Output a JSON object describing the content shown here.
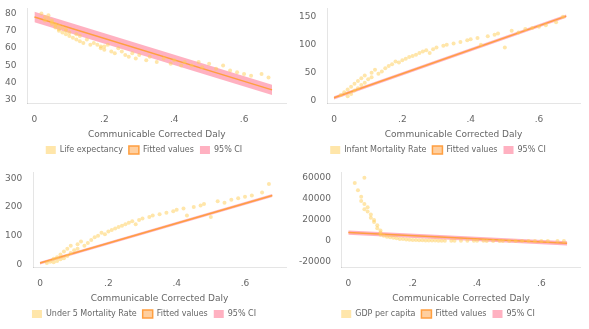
{
  "chart_data": [
    {
      "type": "scatter",
      "xlabel": "Communicable Corrected Daly",
      "xlim": [
        -0.02,
        0.72
      ],
      "xticks": [
        0,
        {
          "value": 0.2,
          "label": ".2"
        },
        {
          "value": 0.4,
          "label": ".4"
        },
        {
          "value": 0.6,
          "label": ".6"
        }
      ],
      "ylim": [
        28,
        83
      ],
      "yticks": [
        30,
        40,
        50,
        60,
        70,
        80
      ],
      "grid": false,
      "legend": "bottom",
      "series": [
        {
          "name": "95% CI",
          "type": "area",
          "x": [
            0,
            0.68
          ],
          "lower": [
            75,
            32.84
          ],
          "upper": [
            81,
            38.84
          ]
        },
        {
          "name": "Fitted values",
          "type": "line",
          "x": [
            0,
            0.68
          ],
          "values": [
            78,
            35.84
          ]
        },
        {
          "name": "Life expectancy",
          "type": "scatter",
          "x": [
            0.02,
            0.03,
            0.03,
            0.04,
            0.04,
            0.05,
            0.05,
            0.05,
            0.06,
            0.06,
            0.06,
            0.07,
            0.07,
            0.07,
            0.08,
            0.08,
            0.09,
            0.09,
            0.09,
            0.1,
            0.1,
            0.11,
            0.12,
            0.12,
            0.13,
            0.13,
            0.14,
            0.15,
            0.16,
            0.17,
            0.18,
            0.19,
            0.19,
            0.2,
            0.2,
            0.21,
            0.22,
            0.23,
            0.24,
            0.25,
            0.26,
            0.27,
            0.28,
            0.29,
            0.3,
            0.32,
            0.33,
            0.35,
            0.37,
            0.39,
            0.4,
            0.42,
            0.43,
            0.45,
            0.47,
            0.48,
            0.5,
            0.52,
            0.54,
            0.56,
            0.58,
            0.6,
            0.62,
            0.65,
            0.67
          ],
          "values": [
            80,
            78,
            76,
            79,
            77,
            75,
            76,
            74,
            73,
            72,
            74,
            71,
            73,
            70,
            72,
            69,
            71,
            68,
            70,
            67,
            69,
            66,
            65,
            68,
            64,
            67,
            63,
            65,
            62,
            63,
            62,
            61,
            60,
            61,
            59,
            62,
            58,
            57,
            60,
            58,
            56,
            55,
            57,
            54,
            56,
            53,
            55,
            52,
            54,
            51,
            53,
            50,
            52,
            50,
            52,
            49,
            51,
            48,
            50,
            47,
            46,
            45,
            44,
            45,
            43
          ]
        }
      ]
    },
    {
      "type": "scatter",
      "xlabel": "Communicable Corrected Daly",
      "xlim": [
        -0.02,
        0.72
      ],
      "xticks": [
        0,
        {
          "value": 0.2,
          "label": ".2"
        },
        {
          "value": 0.4,
          "label": ".4"
        },
        {
          "value": 0.6,
          "label": ".6"
        }
      ],
      "ylim": [
        -5,
        165
      ],
      "yticks": [
        0,
        50,
        100,
        150
      ],
      "grid": false,
      "legend": "bottom",
      "series": [
        {
          "name": "95% CI",
          "type": "area",
          "x": [
            0,
            0.68
          ],
          "lower": [
            2,
            148.2
          ],
          "upper": [
            8,
            154.2
          ]
        },
        {
          "name": "Fitted values",
          "type": "line",
          "x": [
            0,
            0.68
          ],
          "values": [
            5,
            151.2
          ]
        },
        {
          "name": "Infant Mortality Rate",
          "type": "scatter",
          "x": [
            0.02,
            0.03,
            0.04,
            0.04,
            0.05,
            0.05,
            0.06,
            0.06,
            0.07,
            0.07,
            0.08,
            0.08,
            0.09,
            0.09,
            0.1,
            0.11,
            0.11,
            0.12,
            0.13,
            0.14,
            0.15,
            0.16,
            0.17,
            0.18,
            0.19,
            0.2,
            0.21,
            0.22,
            0.23,
            0.24,
            0.25,
            0.26,
            0.27,
            0.28,
            0.29,
            0.3,
            0.32,
            0.33,
            0.35,
            0.37,
            0.39,
            0.4,
            0.42,
            0.43,
            0.45,
            0.47,
            0.48,
            0.5,
            0.52,
            0.54,
            0.56,
            0.58,
            0.6,
            0.62,
            0.65,
            0.67
          ],
          "values": [
            10,
            15,
            8,
            20,
            25,
            12,
            30,
            18,
            35,
            22,
            28,
            40,
            32,
            45,
            38,
            50,
            42,
            55,
            48,
            52,
            58,
            62,
            65,
            70,
            68,
            72,
            75,
            78,
            80,
            82,
            85,
            88,
            90,
            85,
            92,
            95,
            98,
            100,
            102,
            105,
            108,
            110,
            112,
            100,
            115,
            118,
            120,
            95,
            125,
            122,
            128,
            130,
            132,
            135,
            140,
            150
          ]
        }
      ]
    },
    {
      "type": "scatter",
      "xlabel": "Communicable Corrected Daly",
      "xlim": [
        -0.02,
        0.72
      ],
      "xticks": [
        0,
        {
          "value": 0.2,
          "label": ".2"
        },
        {
          "value": 0.4,
          "label": ".4"
        },
        {
          "value": 0.6,
          "label": ".6"
        }
      ],
      "ylim": [
        -10,
        320
      ],
      "yticks": [
        0,
        100,
        200,
        300
      ],
      "grid": false,
      "legend": "bottom",
      "series": [
        {
          "name": "95% CI",
          "type": "area",
          "x": [
            0,
            0.68
          ],
          "lower": [
            0,
            234.6
          ],
          "upper": [
            10,
            244.6
          ]
        },
        {
          "name": "Fitted values",
          "type": "line",
          "x": [
            0,
            0.68
          ],
          "values": [
            5,
            239.6
          ]
        },
        {
          "name": "Under 5 Mortality Rate",
          "type": "scatter",
          "x": [
            0.02,
            0.03,
            0.04,
            0.04,
            0.05,
            0.05,
            0.06,
            0.06,
            0.07,
            0.07,
            0.08,
            0.08,
            0.09,
            0.09,
            0.1,
            0.11,
            0.11,
            0.12,
            0.13,
            0.14,
            0.15,
            0.16,
            0.17,
            0.18,
            0.19,
            0.2,
            0.21,
            0.22,
            0.23,
            0.24,
            0.25,
            0.26,
            0.27,
            0.28,
            0.29,
            0.3,
            0.32,
            0.33,
            0.35,
            0.37,
            0.39,
            0.4,
            0.42,
            0.43,
            0.45,
            0.47,
            0.48,
            0.5,
            0.52,
            0.54,
            0.56,
            0.58,
            0.6,
            0.62,
            0.65,
            0.67
          ],
          "values": [
            5,
            10,
            8,
            20,
            25,
            12,
            35,
            18,
            45,
            22,
            30,
            55,
            40,
            65,
            50,
            70,
            55,
            80,
            65,
            75,
            85,
            95,
            100,
            110,
            105,
            115,
            120,
            125,
            130,
            135,
            140,
            145,
            150,
            140,
            155,
            160,
            165,
            170,
            175,
            180,
            185,
            190,
            195,
            170,
            200,
            205,
            210,
            165,
            220,
            215,
            225,
            230,
            235,
            240,
            250,
            280
          ]
        }
      ]
    },
    {
      "type": "scatter",
      "xlabel": "Communicable Corrected Daly",
      "xlim": [
        -0.02,
        0.72
      ],
      "xticks": [
        0,
        {
          "value": 0.2,
          "label": ".2"
        },
        {
          "value": 0.4,
          "label": ".4"
        },
        {
          "value": 0.6,
          "label": ".6"
        }
      ],
      "ylim": [
        -25000,
        65000
      ],
      "yticks": [
        -20000,
        0,
        20000,
        40000,
        60000
      ],
      "grid": false,
      "legend": "bottom",
      "series": [
        {
          "name": "95% CI",
          "type": "area",
          "x": [
            0,
            0.68
          ],
          "lower": [
            6000,
            -4200
          ],
          "upper": [
            10000,
            -200
          ]
        },
        {
          "name": "Fitted values",
          "type": "line",
          "x": [
            0,
            0.68
          ],
          "values": [
            8000,
            -2200
          ]
        },
        {
          "name": "GDP per capita",
          "type": "scatter",
          "x": [
            0.02,
            0.03,
            0.04,
            0.04,
            0.05,
            0.05,
            0.05,
            0.06,
            0.06,
            0.07,
            0.07,
            0.08,
            0.08,
            0.09,
            0.09,
            0.1,
            0.1,
            0.1,
            0.11,
            0.12,
            0.13,
            0.14,
            0.15,
            0.16,
            0.17,
            0.18,
            0.19,
            0.2,
            0.21,
            0.22,
            0.23,
            0.24,
            0.25,
            0.26,
            0.27,
            0.28,
            0.29,
            0.3,
            0.32,
            0.33,
            0.35,
            0.37,
            0.39,
            0.4,
            0.42,
            0.43,
            0.45,
            0.47,
            0.48,
            0.5,
            0.52,
            0.54,
            0.56,
            0.58,
            0.6,
            0.62,
            0.65,
            0.67
          ],
          "values": [
            55000,
            48000,
            42000,
            38000,
            60000,
            35000,
            30000,
            28000,
            32000,
            25000,
            22000,
            20000,
            18000,
            15000,
            12000,
            10000,
            8000,
            6000,
            5000,
            4000,
            3500,
            3000,
            2500,
            2000,
            1800,
            1500,
            1200,
            1000,
            900,
            800,
            700,
            600,
            500,
            450,
            400,
            350,
            300,
            280,
            250,
            220,
            200,
            180,
            160,
            140,
            130,
            120,
            110,
            100,
            90,
            80,
            70,
            60,
            50,
            45,
            40,
            35,
            30,
            25
          ]
        }
      ]
    }
  ]
}
